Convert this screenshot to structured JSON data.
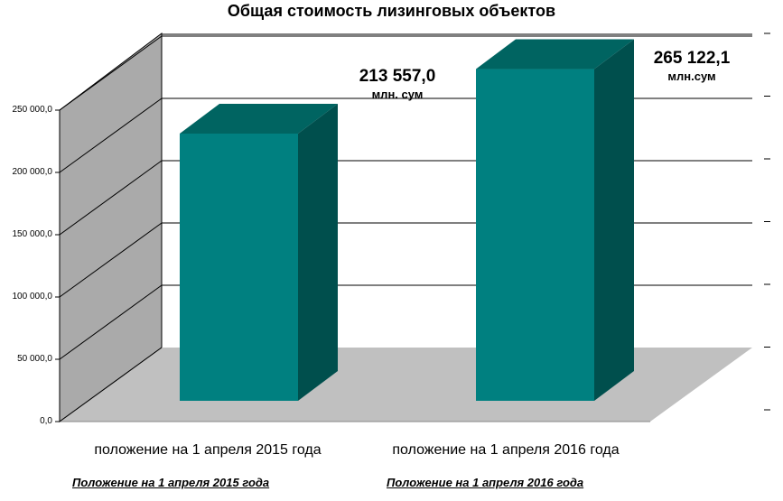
{
  "chart_data": {
    "type": "bar",
    "title": "Общая стоимость лизинговых объектов",
    "categories": [
      "положение на 1 апреля 2015 года",
      "положение на 1 апреля 2016 года"
    ],
    "values": [
      213557.0,
      265122.1
    ],
    "data_labels": [
      {
        "value": "213 557,0",
        "unit": "млн. сум"
      },
      {
        "value": "265 122,1",
        "unit": "млн.сум"
      }
    ],
    "yticks": [
      "0,0",
      "50 000,0",
      "100 000,0",
      "150 000,0",
      "200 000,0",
      "250 000,0"
    ],
    "ylim": [
      0,
      250000
    ],
    "grid": true,
    "three_d": true,
    "colors": {
      "bar_front": "#008080",
      "bar_top": "#006461",
      "bar_side": "#004f4d",
      "wall_left": "#aaaaaa",
      "floor": "#c0c0c0",
      "grid": "#000000"
    }
  },
  "footer": {
    "left": "Положение на 1 апреля 2015 года",
    "right": "Положение на 1 апреля 2016 года"
  }
}
